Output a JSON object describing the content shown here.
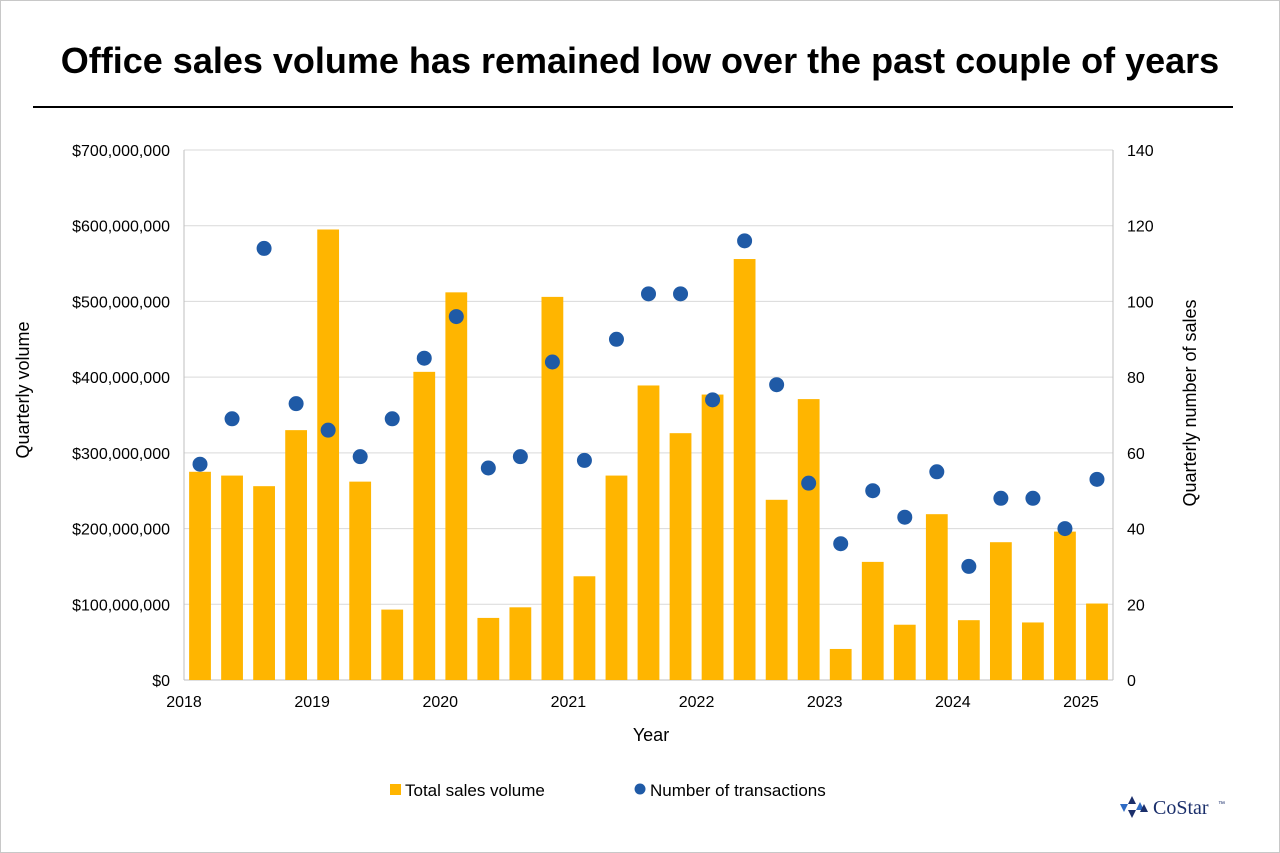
{
  "colors": {
    "bar": "#FFB500",
    "dot": "#1F5AA6",
    "grid": "#d9d9d9",
    "axis": "#bfbfbf"
  },
  "chart_data": {
    "type": "bar",
    "title": "Office sales volume has remained low over the past couple of years",
    "xlabel": "Year",
    "ylabel": "Quarterly volume",
    "y2label": "Quarterly number of sales",
    "ylim": [
      0,
      700000000
    ],
    "y2lim": [
      0,
      140
    ],
    "yticks": [
      "$0",
      "$100,000,000",
      "$200,000,000",
      "$300,000,000",
      "$400,000,000",
      "$500,000,000",
      "$600,000,000",
      "$700,000,000"
    ],
    "y2ticks": [
      "0",
      "20",
      "40",
      "60",
      "80",
      "100",
      "120",
      "140"
    ],
    "xticks": [
      "2018",
      "2019",
      "2020",
      "2021",
      "2022",
      "2023",
      "2024",
      "2025"
    ],
    "grid": true,
    "legend_position": "bottom",
    "categories": [
      "2018 Q1",
      "2018 Q2",
      "2018 Q3",
      "2018 Q4",
      "2019 Q1",
      "2019 Q2",
      "2019 Q3",
      "2019 Q4",
      "2020 Q1",
      "2020 Q2",
      "2020 Q3",
      "2020 Q4",
      "2021 Q1",
      "2021 Q2",
      "2021 Q3",
      "2021 Q4",
      "2022 Q1",
      "2022 Q2",
      "2022 Q3",
      "2022 Q4",
      "2023 Q1",
      "2023 Q2",
      "2023 Q3",
      "2023 Q4",
      "2024 Q1",
      "2024 Q2",
      "2024 Q3",
      "2024 Q4",
      "2025 Q1"
    ],
    "series": [
      {
        "name": "Total sales volume",
        "type": "bar",
        "axis": "left",
        "values": [
          275000000,
          270000000,
          256000000,
          330000000,
          595000000,
          262000000,
          93000000,
          407000000,
          512000000,
          82000000,
          96000000,
          506000000,
          137000000,
          270000000,
          389000000,
          326000000,
          377000000,
          556000000,
          238000000,
          371000000,
          41000000,
          156000000,
          73000000,
          219000000,
          79000000,
          182000000,
          76000000,
          196000000,
          101000000
        ]
      },
      {
        "name": "Number of transactions",
        "type": "scatter",
        "axis": "right",
        "values": [
          57,
          69,
          114,
          73,
          66,
          59,
          69,
          85,
          96,
          56,
          59,
          84,
          58,
          90,
          102,
          102,
          74,
          116,
          78,
          52,
          36,
          50,
          43,
          55,
          30,
          48,
          48,
          40,
          53
        ]
      }
    ]
  },
  "logo": {
    "text": "CoStar",
    "tm": "™"
  }
}
